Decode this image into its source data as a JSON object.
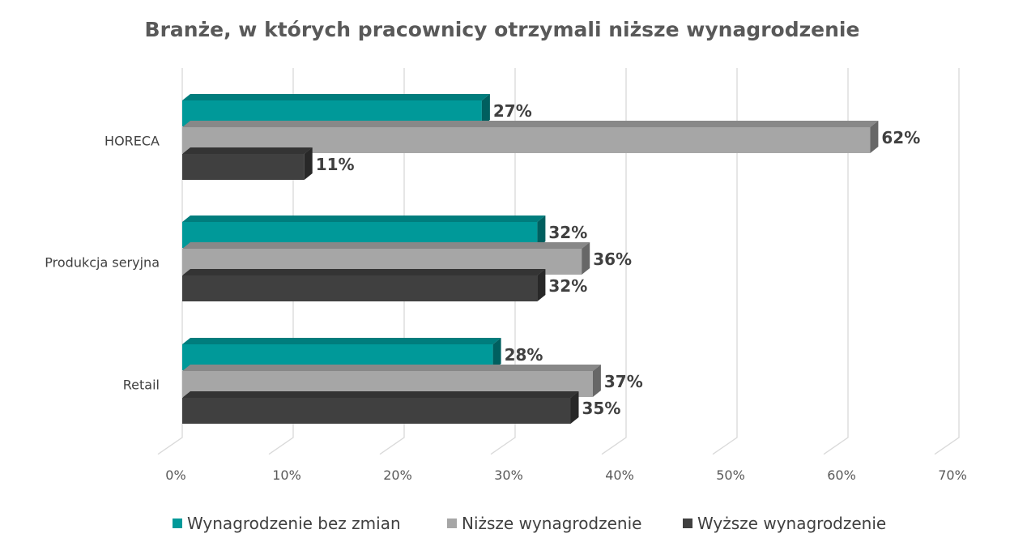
{
  "chart_data": {
    "type": "bar",
    "orientation": "horizontal",
    "style": "3d-clustered",
    "title": "Branże, w których pracownicy otrzymali niższe wynagrodzenie",
    "xlabel": "",
    "ylabel": "",
    "categories": [
      "HORECA",
      "Produkcja seryjna",
      "Retail"
    ],
    "xlim": [
      0,
      70
    ],
    "x_ticks": [
      "0%",
      "10%",
      "20%",
      "30%",
      "40%",
      "50%",
      "60%",
      "70%"
    ],
    "grid": true,
    "legend_position": "bottom",
    "series": [
      {
        "name": "Wynagrodzenie bez zmian",
        "color": "#009999",
        "values": [
          27,
          32,
          28
        ],
        "labels": [
          "27%",
          "32%",
          "28%"
        ]
      },
      {
        "name": "Niższe wynagrodzenie",
        "color": "#A6A6A6",
        "values": [
          62,
          36,
          37
        ],
        "labels": [
          "62%",
          "36%",
          "37%"
        ]
      },
      {
        "name": "Wyższe wynagrodzenie",
        "color": "#404040",
        "values": [
          11,
          32,
          35
        ],
        "labels": [
          "11%",
          "32%",
          "35%"
        ]
      }
    ]
  }
}
